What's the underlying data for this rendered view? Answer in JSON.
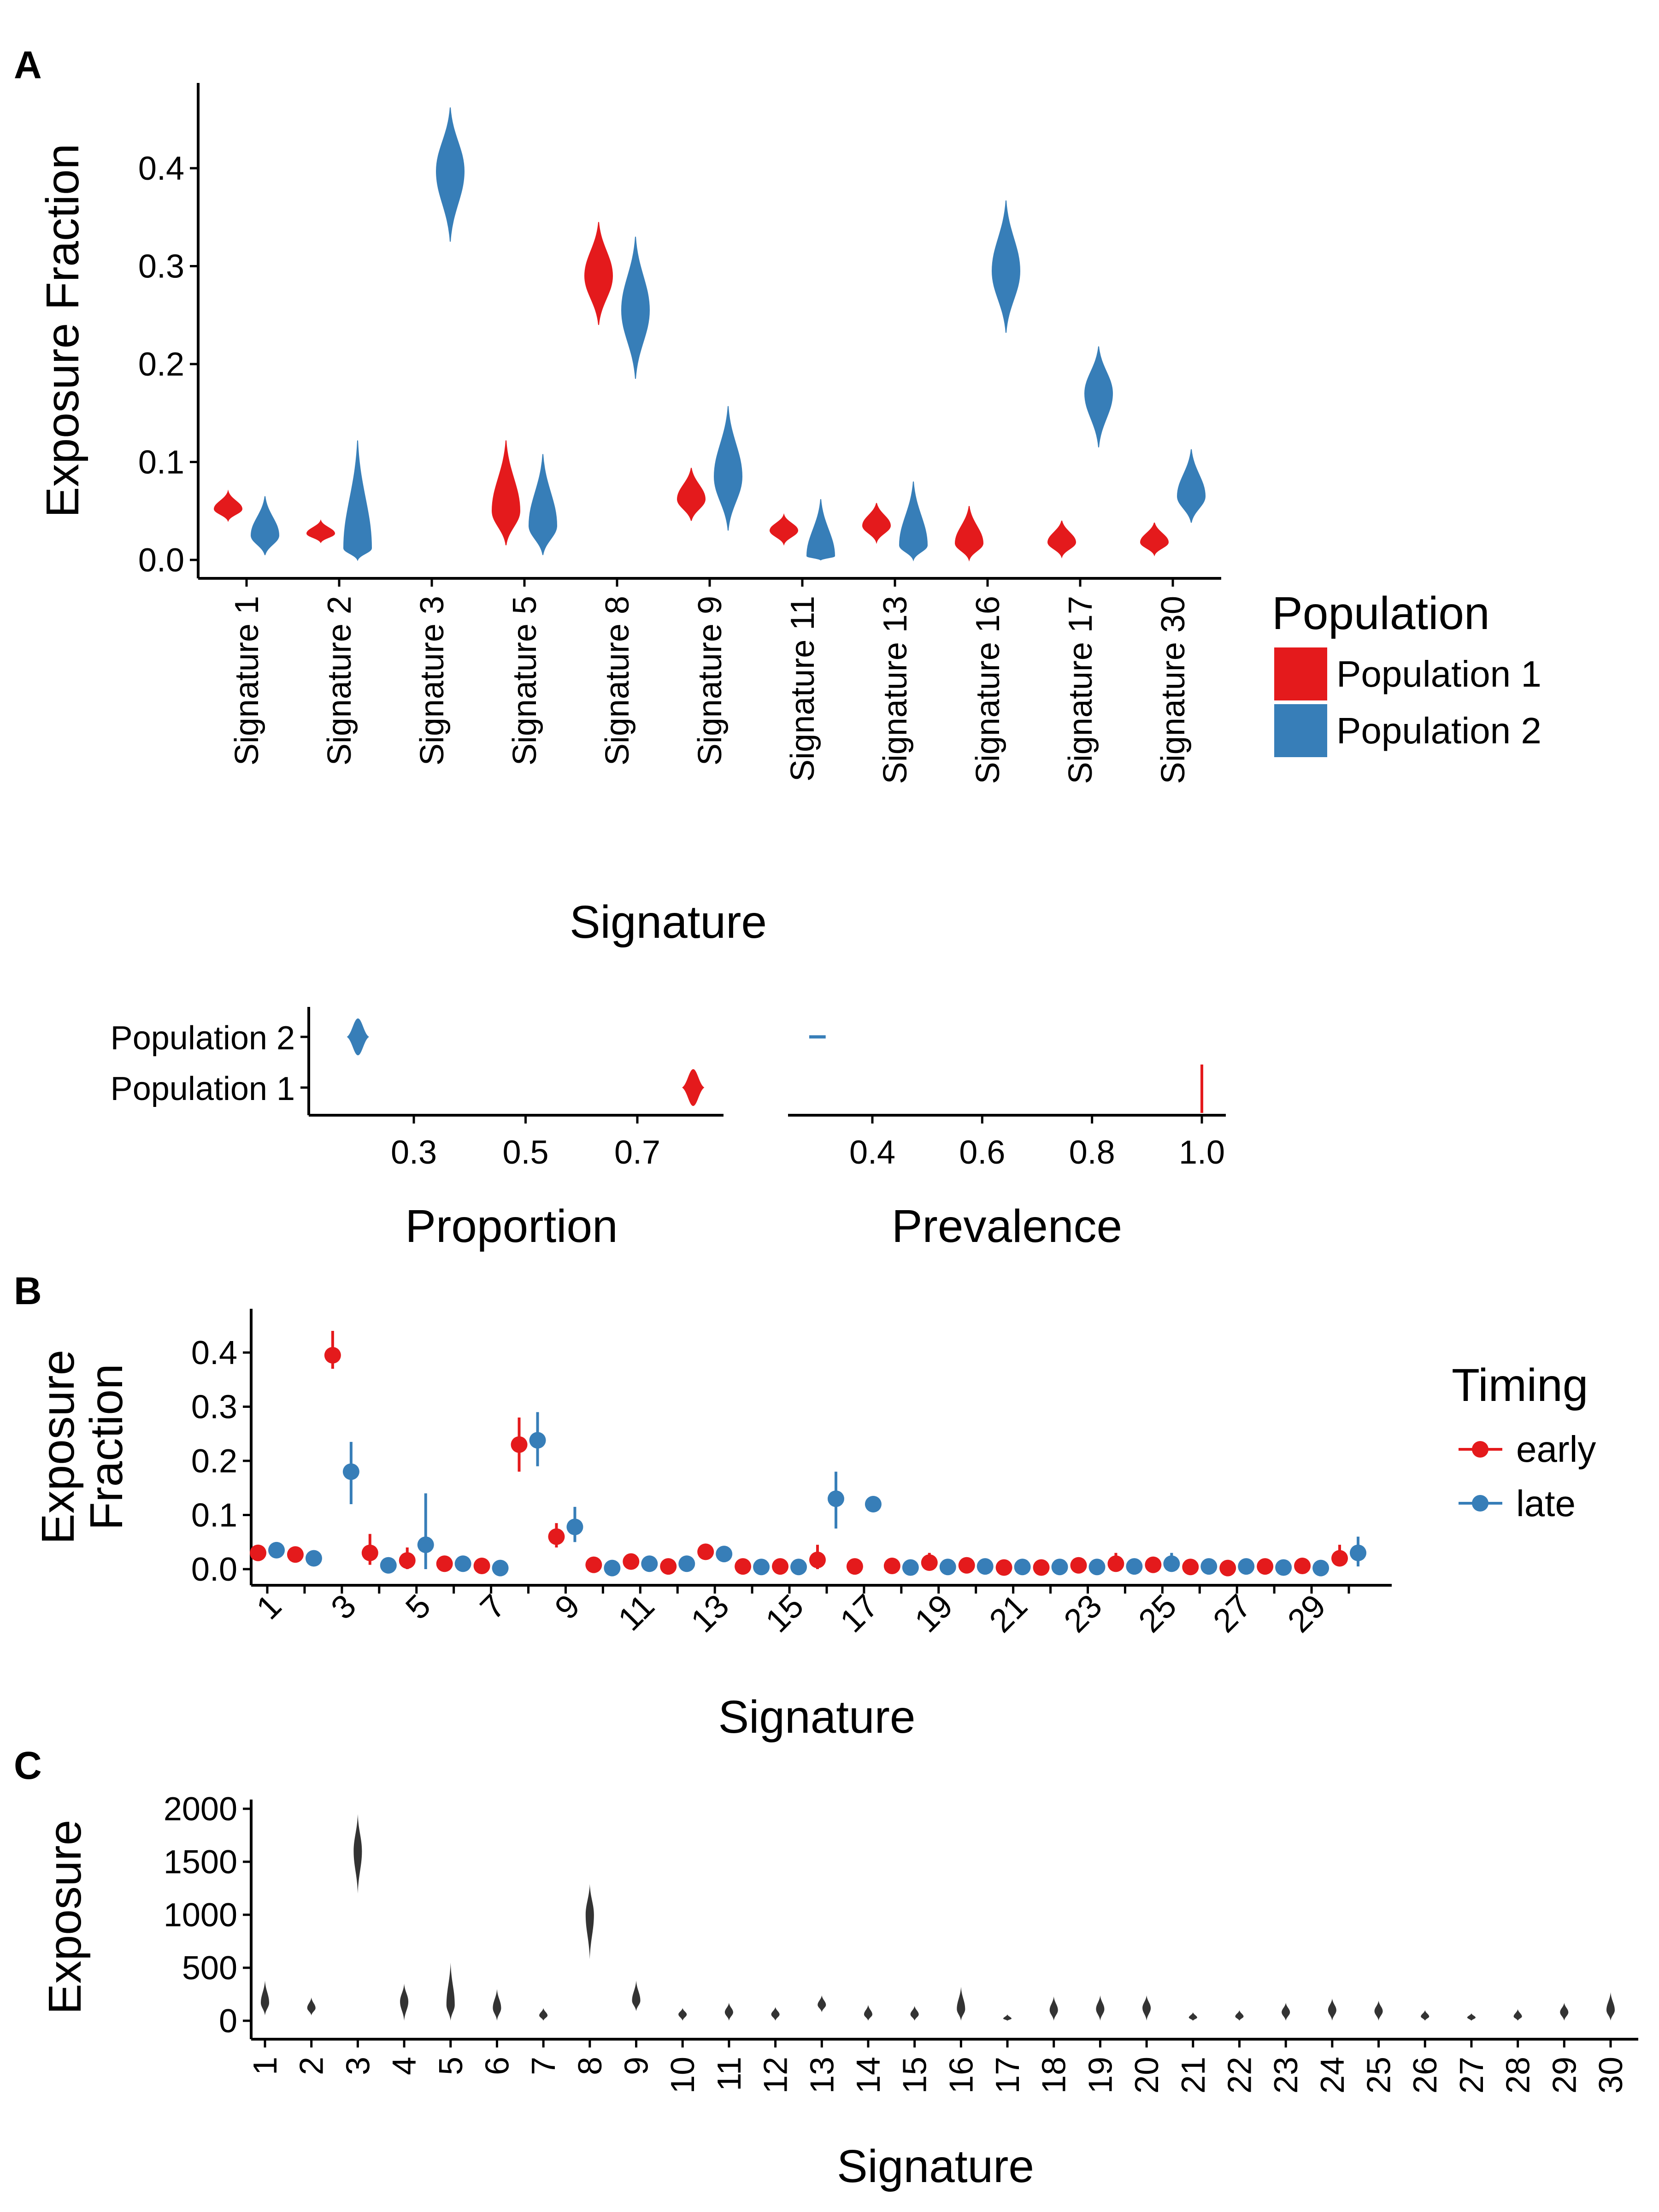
{
  "colors": {
    "population_1": "#e41a1c",
    "population_2": "#377eb8",
    "early": "#e41a1c",
    "late": "#377eb8",
    "panel_c": "#333333",
    "axis": "#000000"
  },
  "panel_labels": {
    "a": "A",
    "b": "B",
    "c": "C"
  },
  "chart_data": [
    {
      "id": "A-main",
      "type": "violin",
      "xlabel": "Signature",
      "ylabel": "Exposure Fraction",
      "ylim": [
        0,
        0.46
      ],
      "yticks": [
        0.0,
        0.1,
        0.2,
        0.3,
        0.4
      ],
      "ytick_labels": [
        "0.0",
        "0.1",
        "0.2",
        "0.3",
        "0.4"
      ],
      "categories": [
        "Signature 1",
        "Signature 2",
        "Signature 3",
        "Signature 5",
        "Signature 8",
        "Signature 9",
        "Signature 11",
        "Signature 13",
        "Signature 16",
        "Signature 17",
        "Signature 30"
      ],
      "legend": {
        "title": "Population",
        "placement": "right",
        "entries": [
          "Population 1",
          "Population 2"
        ]
      },
      "series": [
        {
          "name": "Population 1",
          "median": [
            0.052,
            0.027,
            null,
            0.05,
            0.29,
            0.062,
            0.03,
            0.035,
            0.017,
            0.018,
            0.018
          ],
          "min": [
            0.04,
            0.018,
            null,
            0.015,
            0.24,
            0.04,
            0.016,
            0.018,
            0.0,
            0.003,
            0.005
          ],
          "max": [
            0.07,
            0.04,
            null,
            0.122,
            0.345,
            0.094,
            0.046,
            0.058,
            0.055,
            0.04,
            0.038
          ]
        },
        {
          "name": "Population 2",
          "median": [
            0.025,
            0.012,
            0.397,
            0.035,
            0.255,
            0.085,
            0.004,
            0.015,
            0.295,
            0.17,
            0.065
          ],
          "min": [
            0.005,
            0.0,
            0.325,
            0.005,
            0.185,
            0.03,
            0.0,
            0.0,
            0.232,
            0.115,
            0.038
          ],
          "max": [
            0.065,
            0.122,
            0.462,
            0.108,
            0.33,
            0.157,
            0.062,
            0.08,
            0.367,
            0.218,
            0.113
          ]
        }
      ]
    },
    {
      "id": "A-proportion",
      "type": "violin",
      "xlabel": "Proportion",
      "xticks": [
        0.3,
        0.5,
        0.7
      ],
      "xtick_labels": [
        "0.3",
        "0.5",
        "0.7"
      ],
      "xlim": [
        0.17,
        0.83
      ],
      "categories": [
        "Population 2",
        "Population 1"
      ],
      "series": [
        {
          "name": "Population 2",
          "median": 0.2,
          "min": 0.18,
          "max": 0.22
        },
        {
          "name": "Population 1",
          "median": 0.8,
          "min": 0.78,
          "max": 0.82
        }
      ]
    },
    {
      "id": "A-prevalence",
      "type": "violin",
      "xlabel": "Prevalence",
      "xticks": [
        0.4,
        0.6,
        0.8,
        1.0
      ],
      "xtick_labels": [
        "0.4",
        "0.6",
        "0.8",
        "1.0"
      ],
      "xlim": [
        0.2,
        1.04
      ],
      "categories": [
        "Population 2",
        "Population 1"
      ],
      "series": [
        {
          "name": "Population 2",
          "median": 0.3,
          "min": 0.285,
          "max": 0.315
        },
        {
          "name": "Population 1",
          "median": 1.0,
          "min": 0.998,
          "max": 1.0
        }
      ]
    },
    {
      "id": "B",
      "type": "pointrange",
      "xlabel": "Signature",
      "ylabel": [
        "Exposure",
        "Fraction"
      ],
      "ylim": [
        0,
        0.46
      ],
      "yticks": [
        0.0,
        0.1,
        0.2,
        0.3,
        0.4
      ],
      "ytick_labels": [
        "0.0",
        "0.1",
        "0.2",
        "0.3",
        "0.4"
      ],
      "xtick_labels": [
        "1",
        "3",
        "5",
        "7",
        "9",
        "11",
        "13",
        "15",
        "17",
        "19",
        "21",
        "23",
        "25",
        "27",
        "29"
      ],
      "legend": {
        "title": "Timing",
        "placement": "right",
        "entries": [
          "early",
          "late"
        ]
      },
      "x": [
        1,
        2,
        3,
        4,
        5,
        6,
        7,
        8,
        9,
        10,
        11,
        12,
        13,
        14,
        15,
        16,
        17,
        18,
        19,
        20,
        21,
        22,
        23,
        24,
        25,
        26,
        27,
        28,
        29,
        30
      ],
      "series": [
        {
          "name": "early",
          "values": [
            0.03,
            0.027,
            0.395,
            0.03,
            0.016,
            0.01,
            0.006,
            0.23,
            0.06,
            0.008,
            0.014,
            0.005,
            0.032,
            0.005,
            0.005,
            0.017,
            0.005,
            0.006,
            0.012,
            0.007,
            0.003,
            0.003,
            0.007,
            0.01,
            0.008,
            0.004,
            0.002,
            0.005,
            0.006,
            0.02
          ],
          "lower": [
            0.022,
            0.02,
            0.37,
            0.008,
            0.0,
            0.003,
            0.0,
            0.18,
            0.04,
            0.002,
            0.006,
            0.0,
            0.026,
            0.0,
            0.0,
            0.0,
            0.0,
            0.0,
            0.003,
            0.0,
            0.0,
            0.0,
            0.0,
            0.0,
            0.0,
            0.0,
            0.0,
            0.0,
            0.0,
            0.005
          ],
          "upper": [
            0.04,
            0.034,
            0.44,
            0.065,
            0.04,
            0.017,
            0.012,
            0.28,
            0.085,
            0.015,
            0.022,
            0.012,
            0.038,
            0.012,
            0.012,
            0.045,
            0.01,
            0.013,
            0.03,
            0.014,
            0.008,
            0.008,
            0.014,
            0.03,
            0.02,
            0.01,
            0.005,
            0.012,
            0.012,
            0.045
          ]
        },
        {
          "name": "late",
          "values": [
            0.035,
            0.02,
            0.18,
            0.007,
            0.045,
            0.01,
            0.002,
            0.238,
            0.078,
            0.002,
            0.01,
            0.01,
            0.028,
            0.004,
            0.004,
            0.13,
            0.12,
            0.003,
            0.004,
            0.005,
            0.004,
            0.004,
            0.004,
            0.005,
            0.01,
            0.005,
            0.005,
            0.003,
            0.002,
            0.03
          ],
          "lower": [
            0.02,
            0.014,
            0.12,
            0.0,
            0.0,
            0.004,
            0.0,
            0.19,
            0.05,
            0.0,
            0.003,
            0.004,
            0.022,
            0.0,
            0.0,
            0.075,
            0.105,
            0.0,
            0.0,
            0.0,
            0.0,
            0.0,
            0.0,
            0.0,
            0.0,
            0.0,
            0.0,
            0.0,
            0.0,
            0.005
          ],
          "upper": [
            0.05,
            0.026,
            0.235,
            0.015,
            0.14,
            0.018,
            0.006,
            0.29,
            0.115,
            0.006,
            0.02,
            0.018,
            0.034,
            0.01,
            0.01,
            0.18,
            0.135,
            0.008,
            0.01,
            0.012,
            0.01,
            0.01,
            0.01,
            0.012,
            0.03,
            0.01,
            0.01,
            0.008,
            0.006,
            0.06
          ]
        }
      ]
    },
    {
      "id": "C",
      "type": "violin",
      "xlabel": "Signature",
      "ylabel": "Exposure",
      "ylim": [
        0,
        2000
      ],
      "yticks": [
        0,
        500,
        1000,
        1500,
        2000
      ],
      "ytick_labels": [
        "0",
        "500",
        "1000",
        "1500",
        "2000"
      ],
      "categories": [
        "1",
        "2",
        "3",
        "4",
        "5",
        "6",
        "7",
        "8",
        "9",
        "10",
        "11",
        "12",
        "13",
        "14",
        "15",
        "16",
        "17",
        "18",
        "19",
        "20",
        "21",
        "22",
        "23",
        "24",
        "25",
        "26",
        "27",
        "28",
        "29",
        "30"
      ],
      "median": [
        170,
        120,
        1600,
        180,
        150,
        120,
        50,
        1000,
        190,
        60,
        80,
        60,
        150,
        60,
        60,
        110,
        20,
        100,
        110,
        120,
        30,
        40,
        80,
        100,
        90,
        40,
        30,
        40,
        80,
        100
      ],
      "min": [
        50,
        50,
        1200,
        0,
        0,
        0,
        0,
        580,
        90,
        0,
        0,
        0,
        80,
        0,
        0,
        0,
        0,
        0,
        0,
        0,
        0,
        0,
        0,
        0,
        0,
        0,
        0,
        0,
        0,
        0
      ],
      "max": [
        380,
        220,
        1950,
        350,
        550,
        300,
        120,
        1290,
        380,
        120,
        170,
        130,
        240,
        150,
        140,
        320,
        60,
        230,
        240,
        240,
        80,
        100,
        170,
        210,
        190,
        100,
        70,
        110,
        170,
        270
      ]
    }
  ]
}
